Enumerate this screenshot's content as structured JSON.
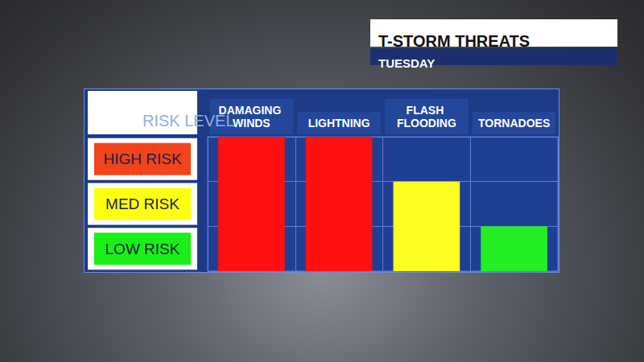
{
  "chart_data": {
    "type": "bar",
    "title": "T-STORM THREATS",
    "subtitle": "TUESDAY",
    "y_label": "RISK LEVEL",
    "categories": [
      "DAMAGING WINDS",
      "LIGHTNING",
      "FLASH FLOODING",
      "TORNADOES"
    ],
    "values": [
      3,
      3,
      2,
      1
    ],
    "colors": [
      "#ff1010",
      "#ff1010",
      "#ffff22",
      "#22ee22"
    ],
    "ylim": [
      0,
      3
    ],
    "yticks": [
      {
        "value": 0.5,
        "label": "LOW RISK"
      },
      {
        "value": 1.5,
        "label": "MED RISK"
      },
      {
        "value": 2.5,
        "label": "HIGH RISK"
      }
    ],
    "grid": true
  }
}
